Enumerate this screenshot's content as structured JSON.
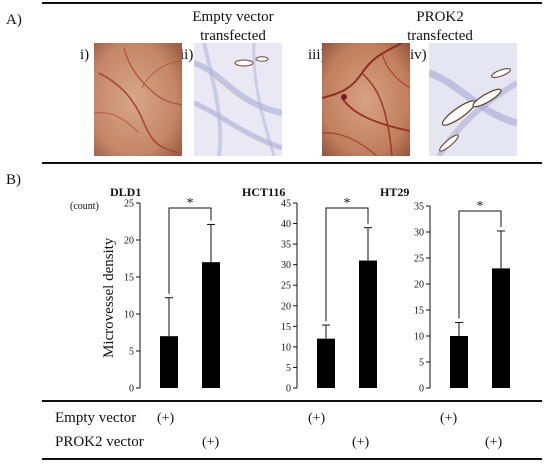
{
  "panel_a": {
    "label": "A)",
    "groups": [
      {
        "title_line1": "Empty vector",
        "title_line2": "transfected",
        "panels": [
          "i)",
          "ii)"
        ]
      },
      {
        "title_line1": "PROK2",
        "title_line2": "transfected",
        "panels": [
          "iii)",
          "iv)"
        ]
      }
    ]
  },
  "panel_b": {
    "label": "B)",
    "count_unit": "(count)",
    "y_axis_label": "Microvessel density",
    "row_labels": {
      "empty": "Empty vector",
      "prok2": "PROK2 vector"
    },
    "plus_marker": "(+)",
    "significance_marker": "*"
  },
  "colors": {
    "bar": "#000000",
    "photo_tissue": "#c98a68",
    "stain": "#8e8fc4"
  },
  "chart_data": [
    {
      "type": "bar",
      "title": "DLD1",
      "categories": [
        "Empty vector",
        "PROK2 vector"
      ],
      "values": [
        7,
        17
      ],
      "error_up": [
        5.2,
        5.1
      ],
      "ylim": [
        0,
        25
      ],
      "yticks": [
        0,
        5,
        10,
        15,
        20,
        25
      ],
      "significance": "*"
    },
    {
      "type": "bar",
      "title": "HCT116",
      "categories": [
        "Empty vector",
        "PROK2 vector"
      ],
      "values": [
        12,
        31
      ],
      "error_up": [
        3.3,
        8
      ],
      "ylim": [
        0,
        45
      ],
      "yticks": [
        0,
        5,
        10,
        15,
        20,
        25,
        30,
        35,
        40,
        45
      ],
      "significance": "*"
    },
    {
      "type": "bar",
      "title": "HT29",
      "categories": [
        "Empty vector",
        "PROK2 vector"
      ],
      "values": [
        10,
        23
      ],
      "error_up": [
        2.6,
        7.2
      ],
      "ylim": [
        0,
        35
      ],
      "yticks": [
        0,
        5,
        10,
        15,
        20,
        25,
        30,
        35
      ],
      "significance": "*"
    }
  ]
}
